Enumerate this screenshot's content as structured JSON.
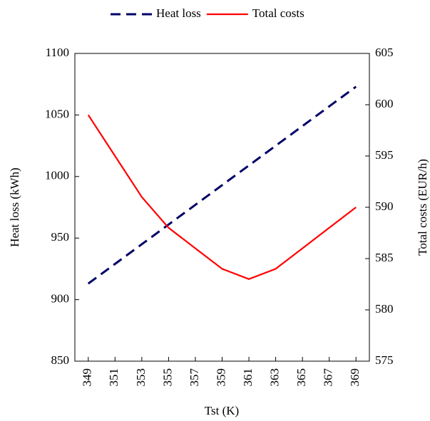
{
  "chart_data": {
    "type": "line",
    "x": [
      349,
      351,
      353,
      355,
      357,
      359,
      361,
      363,
      365,
      367,
      369
    ],
    "xlim": [
      348,
      370
    ],
    "xticks": [
      349,
      351,
      353,
      355,
      357,
      359,
      361,
      363,
      365,
      367,
      369
    ],
    "ylim": [
      850,
      1100
    ],
    "yticks": [
      850,
      900,
      950,
      1000,
      1050,
      1100
    ],
    "y2lim": [
      575,
      605
    ],
    "y2ticks": [
      575,
      580,
      585,
      590,
      595,
      600,
      605
    ],
    "xlabel": "Tst (K)",
    "ylabel": "Heat loss (kWh)",
    "y2label": "Total costs (EUR/h)",
    "legend": "top",
    "series": [
      {
        "name": "Heat loss",
        "color": "#000066",
        "dash": true,
        "values": [
          913,
          929,
          945,
          961,
          977,
          993,
          1009,
          1025,
          1041,
          1057,
          1073
        ]
      },
      {
        "name": "Total costs",
        "color": "#ff0000",
        "axis": "y2",
        "values": [
          599,
          595,
          591,
          588,
          586,
          584,
          583,
          584,
          586,
          588,
          590
        ]
      }
    ]
  }
}
